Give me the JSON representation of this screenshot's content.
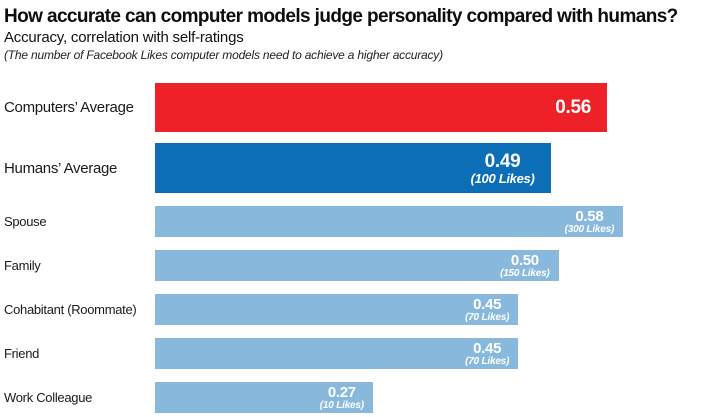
{
  "header": {
    "title": "How accurate can computer models judge personality compared with humans?",
    "subtitle": "Accuracy, correlation with self-ratings",
    "note": "(The number of Facebook Likes computer models need to achieve a higher accuracy)"
  },
  "chart_data": {
    "type": "bar",
    "orientation": "horizontal",
    "title": "How accurate can computer models judge personality compared with humans?",
    "subtitle": "Accuracy, correlation with self-ratings",
    "annotation": "(The number of Facebook Likes computer models need to achieve a higher accuracy)",
    "xlim": [
      0,
      0.7
    ],
    "grid": false,
    "legend": "none",
    "categories": [
      "Computers’ Average",
      "Humans’ Average",
      "Spouse",
      "Family",
      "Cohabitant (Roommate)",
      "Friend",
      "Work Colleague"
    ],
    "values": [
      0.56,
      0.49,
      0.58,
      0.5,
      0.45,
      0.45,
      0.27
    ],
    "colors": {
      "computers_average": "#ED2127",
      "humans_average": "#0C6EB6",
      "individual_judges": "#88B8DC",
      "value_text": "#FFFFFF"
    },
    "bars": [
      {
        "label": "Computers’ Average",
        "value": 0.56,
        "value_label": "0.56",
        "likes_label": "",
        "color": "#ED2127"
      },
      {
        "label": "Humans’ Average",
        "value": 0.49,
        "value_label": "0.49",
        "likes_label": "(100 Likes)",
        "color": "#0C6EB6"
      },
      {
        "label": "Spouse",
        "value": 0.58,
        "value_label": "0.58",
        "likes_label": "(300 Likes)",
        "color": "#88B8DC"
      },
      {
        "label": "Family",
        "value": 0.5,
        "value_label": "0.50",
        "likes_label": "(150 Likes)",
        "color": "#88B8DC"
      },
      {
        "label": "Cohabitant (Roommate)",
        "value": 0.45,
        "value_label": "0.45",
        "likes_label": "(70 Likes)",
        "color": "#88B8DC"
      },
      {
        "label": "Friend",
        "value": 0.45,
        "value_label": "0.45",
        "likes_label": "(70 Likes)",
        "color": "#88B8DC"
      },
      {
        "label": "Work Colleague",
        "value": 0.27,
        "value_label": "0.27",
        "likes_label": "(10 Likes)",
        "color": "#88B8DC"
      }
    ]
  }
}
